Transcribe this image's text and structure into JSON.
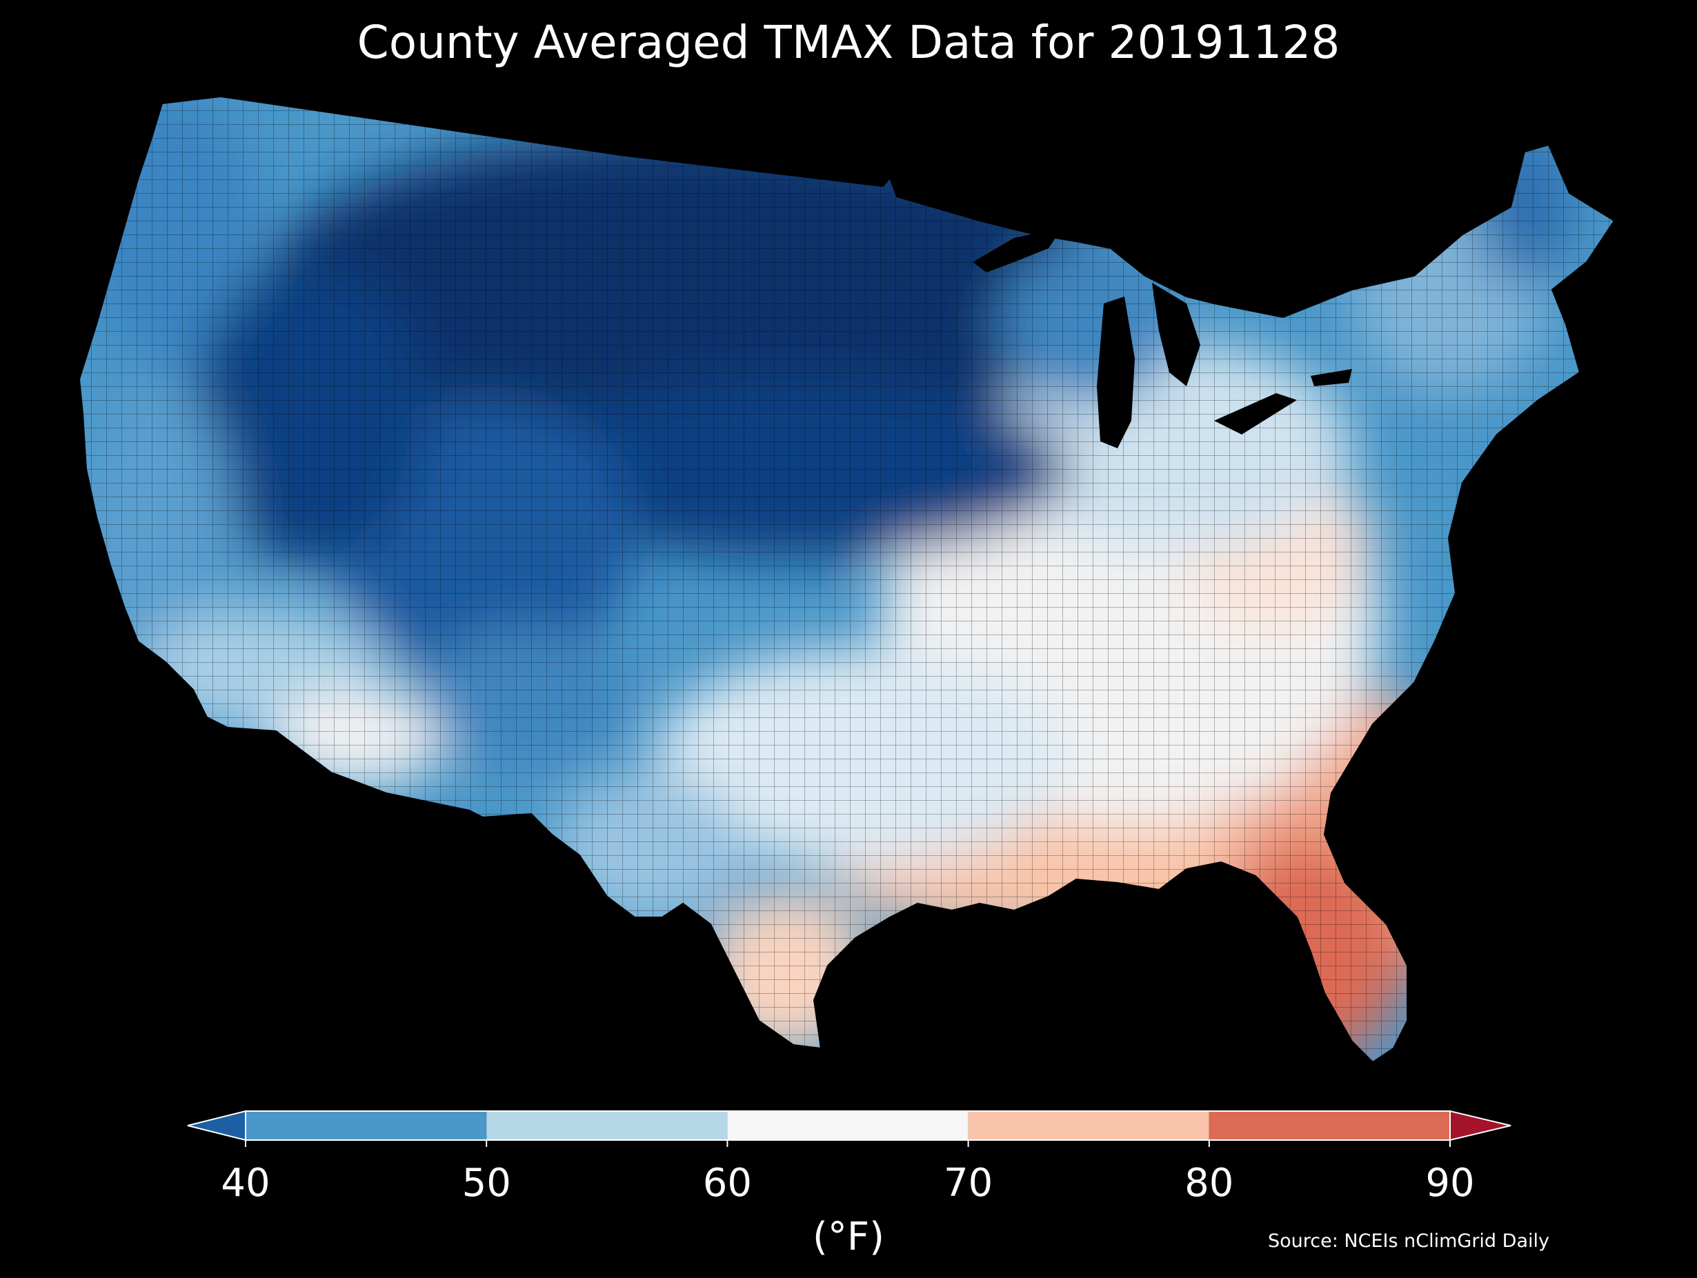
{
  "title": "County Averaged TMAX Data for 20191128",
  "source": "Source: NCEIs nClimGrid Daily",
  "colorbar": {
    "unit": "(°F)",
    "ticks": [
      "40",
      "50",
      "60",
      "70",
      "80",
      "90"
    ],
    "bins": [
      {
        "from": 40,
        "to": 50,
        "color": "#4a97c9"
      },
      {
        "from": 50,
        "to": 60,
        "color": "#b6d7e8"
      },
      {
        "from": 60,
        "to": 70,
        "color": "#f6f6f6"
      },
      {
        "from": 70,
        "to": 80,
        "color": "#f9c4a9"
      },
      {
        "from": 80,
        "to": 90,
        "color": "#dc6a54"
      }
    ],
    "under_color": "#1d5fa3",
    "over_color": "#a3142b"
  },
  "colors": {
    "background": "#000000",
    "deep_cold": "#08306b",
    "cold": "#1f5fa6",
    "cool": "#4a97c9",
    "mild": "#b6d7e8",
    "neutral": "#f6f6f6",
    "warm": "#f9c4a9",
    "hot": "#dc6a54"
  }
}
